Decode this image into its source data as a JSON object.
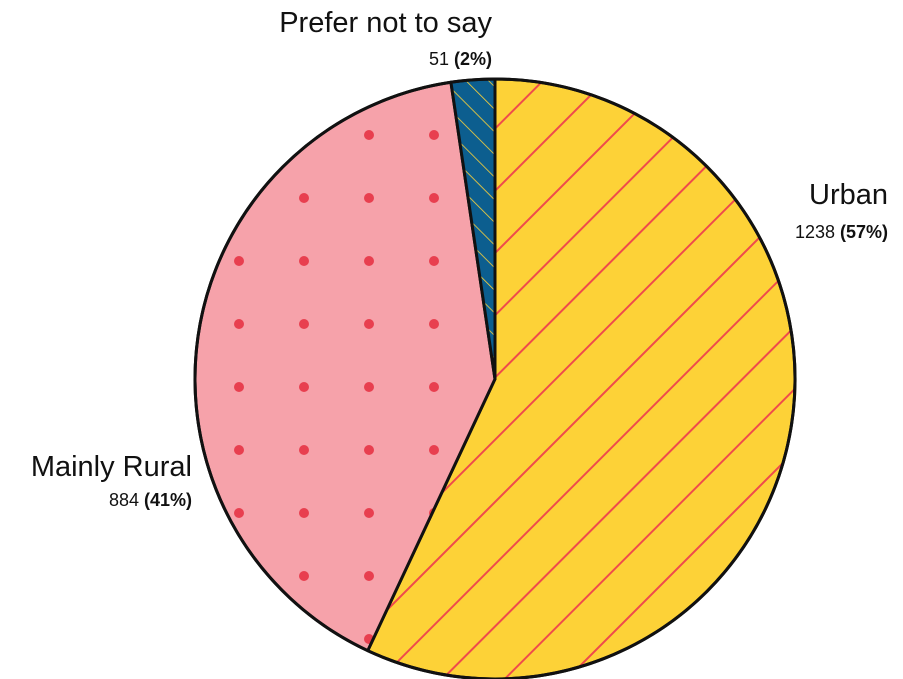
{
  "chart_data": {
    "type": "pie",
    "slices": [
      {
        "label": "Urban",
        "value": 1238,
        "percent": "(57%)",
        "fill": "#fdd237",
        "pattern": "diagonal-stripes",
        "pattern_color": "#ef4b4b"
      },
      {
        "label": "Mainly Rural",
        "value": 884,
        "percent": "(41%)",
        "fill": "#f6a2aa",
        "pattern": "dots",
        "pattern_color": "#e83f4f"
      },
      {
        "label": "Prefer not to say",
        "value": 51,
        "percent": "(2%)",
        "fill": "#0c5e8f",
        "pattern": "diagonal-stripes",
        "pattern_color": "#fdd237"
      }
    ],
    "start": "12 o'clock",
    "direction": "clockwise",
    "outline_color": "#111111"
  }
}
